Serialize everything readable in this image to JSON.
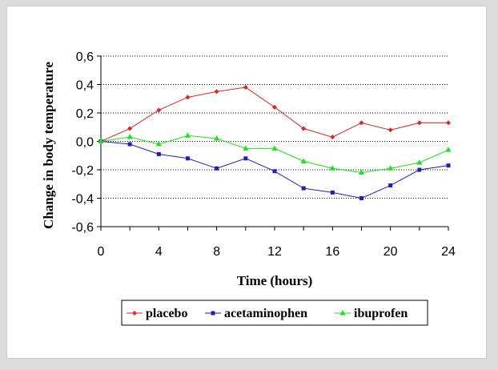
{
  "chart_data": {
    "type": "line",
    "xlabel": "Time (hours)",
    "ylabel": "Change in body temperature",
    "xlim": [
      0,
      24
    ],
    "ylim": [
      -0.6,
      0.6
    ],
    "x_ticks": [
      0,
      4,
      8,
      12,
      16,
      20,
      24
    ],
    "y_ticks": [
      0.6,
      0.4,
      0.2,
      0.0,
      -0.2,
      -0.4,
      -0.6
    ],
    "x_tick_labels": [
      "0",
      "4",
      "8",
      "12",
      "16",
      "20",
      "24"
    ],
    "y_tick_labels": [
      "0,6",
      "0,4",
      "0,2",
      "0,0",
      "-0,2",
      "-0,4",
      "-0,6"
    ],
    "grid": "horizontal dotted",
    "legend_position": "bottom",
    "x": [
      0,
      2,
      4,
      6,
      8,
      10,
      12,
      14,
      16,
      18,
      20,
      22,
      24
    ],
    "series": [
      {
        "name": "placebo",
        "color": "#d62728",
        "marker": "diamond",
        "values": [
          0.0,
          0.09,
          0.22,
          0.31,
          0.35,
          0.38,
          0.24,
          0.09,
          0.03,
          0.13,
          0.08,
          0.13,
          0.13
        ]
      },
      {
        "name": "acetaminophen",
        "color": "#1f1fb4",
        "marker": "square",
        "values": [
          0.0,
          -0.02,
          -0.09,
          -0.12,
          -0.19,
          -0.12,
          -0.21,
          -0.33,
          -0.36,
          -0.4,
          -0.31,
          -0.2,
          -0.17
        ]
      },
      {
        "name": "ibuprofen",
        "color": "#22dd22",
        "marker": "triangle",
        "values": [
          0.0,
          0.03,
          -0.02,
          0.04,
          0.02,
          -0.05,
          -0.05,
          -0.14,
          -0.19,
          -0.22,
          -0.19,
          -0.15,
          -0.06
        ]
      }
    ]
  }
}
